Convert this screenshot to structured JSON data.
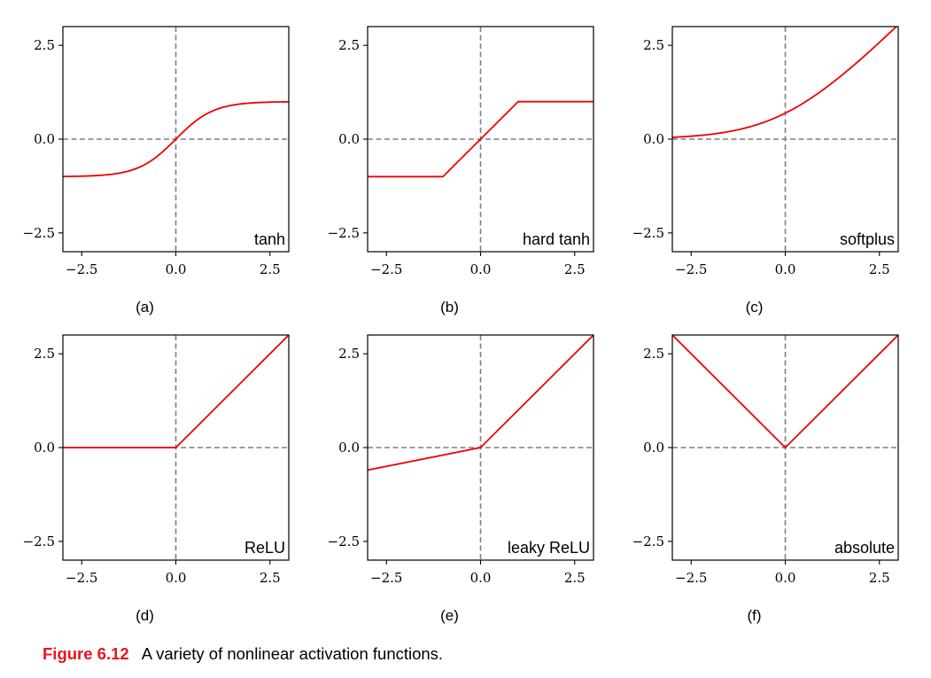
{
  "caption": {
    "number": "Figure 6.12",
    "text": "A variety of nonlinear activation functions."
  },
  "colors": {
    "curve": "#ee0000",
    "reference_line": "#7f7f7f",
    "axes": "#000000"
  },
  "chart_data": [
    {
      "type": "line",
      "sublabel": "(a)",
      "panel_label": "tanh",
      "function": "tanh",
      "xlim": [
        -3,
        3
      ],
      "ylim": [
        -3,
        3
      ],
      "x_ticks": [
        -2.5,
        0.0,
        2.5
      ],
      "y_ticks": [
        -2.5,
        0.0,
        2.5
      ],
      "x_tick_labels": [
        "−2.5",
        "0.0",
        "2.5"
      ],
      "y_tick_labels": [
        "−2.5",
        "0.0",
        "2.5"
      ],
      "series": [
        {
          "x": [
            -3,
            -2,
            -1,
            -0.5,
            0,
            0.5,
            1,
            2,
            3
          ],
          "y": [
            -0.995,
            -0.964,
            -0.762,
            -0.462,
            0,
            0.462,
            0.762,
            0.964,
            0.995
          ]
        }
      ]
    },
    {
      "type": "line",
      "sublabel": "(b)",
      "panel_label": "hard tanh",
      "function": "hardtanh",
      "xlim": [
        -3,
        3
      ],
      "ylim": [
        -3,
        3
      ],
      "x_ticks": [
        -2.5,
        0.0,
        2.5
      ],
      "y_ticks": [
        -2.5,
        0.0,
        2.5
      ],
      "x_tick_labels": [
        "−2.5",
        "0.0",
        "2.5"
      ],
      "y_tick_labels": [
        "−2.5",
        "0.0",
        "2.5"
      ],
      "series": [
        {
          "x": [
            -3,
            -1,
            1,
            3
          ],
          "y": [
            -1,
            -1,
            1,
            1
          ]
        }
      ]
    },
    {
      "type": "line",
      "sublabel": "(c)",
      "panel_label": "softplus",
      "function": "softplus",
      "xlim": [
        -3,
        3
      ],
      "ylim": [
        -3,
        3
      ],
      "x_ticks": [
        -2.5,
        0.0,
        2.5
      ],
      "y_ticks": [
        -2.5,
        0.0,
        2.5
      ],
      "x_tick_labels": [
        "−2.5",
        "0.0",
        "2.5"
      ],
      "y_tick_labels": [
        "−2.5",
        "0.0",
        "2.5"
      ],
      "series": [
        {
          "x": [
            -3,
            -2,
            -1,
            0,
            1,
            2,
            3
          ],
          "y": [
            0.049,
            0.127,
            0.313,
            0.693,
            1.313,
            2.127,
            3.049
          ]
        }
      ]
    },
    {
      "type": "line",
      "sublabel": "(d)",
      "panel_label": "ReLU",
      "function": "relu",
      "xlim": [
        -3,
        3
      ],
      "ylim": [
        -3,
        3
      ],
      "x_ticks": [
        -2.5,
        0.0,
        2.5
      ],
      "y_ticks": [
        -2.5,
        0.0,
        2.5
      ],
      "x_tick_labels": [
        "−2.5",
        "0.0",
        "2.5"
      ],
      "y_tick_labels": [
        "−2.5",
        "0.0",
        "2.5"
      ],
      "series": [
        {
          "x": [
            -3,
            0,
            3
          ],
          "y": [
            0,
            0,
            3
          ]
        }
      ]
    },
    {
      "type": "line",
      "sublabel": "(e)",
      "panel_label": "leaky ReLU",
      "function": "leakyrelu",
      "xlim": [
        -3,
        3
      ],
      "ylim": [
        -3,
        3
      ],
      "x_ticks": [
        -2.5,
        0.0,
        2.5
      ],
      "y_ticks": [
        -2.5,
        0.0,
        2.5
      ],
      "x_tick_labels": [
        "−2.5",
        "0.0",
        "2.5"
      ],
      "y_tick_labels": [
        "−2.5",
        "0.0",
        "2.5"
      ],
      "series": [
        {
          "x": [
            -3,
            0,
            3
          ],
          "y": [
            -0.6,
            0,
            3
          ]
        }
      ]
    },
    {
      "type": "line",
      "sublabel": "(f)",
      "panel_label": "absolute",
      "function": "abs",
      "xlim": [
        -3,
        3
      ],
      "ylim": [
        -3,
        3
      ],
      "x_ticks": [
        -2.5,
        0.0,
        2.5
      ],
      "y_ticks": [
        -2.5,
        0.0,
        2.5
      ],
      "x_tick_labels": [
        "−2.5",
        "0.0",
        "2.5"
      ],
      "y_tick_labels": [
        "−2.5",
        "0.0",
        "2.5"
      ],
      "series": [
        {
          "x": [
            -3,
            0,
            3
          ],
          "y": [
            3,
            0,
            3
          ]
        }
      ]
    }
  ]
}
